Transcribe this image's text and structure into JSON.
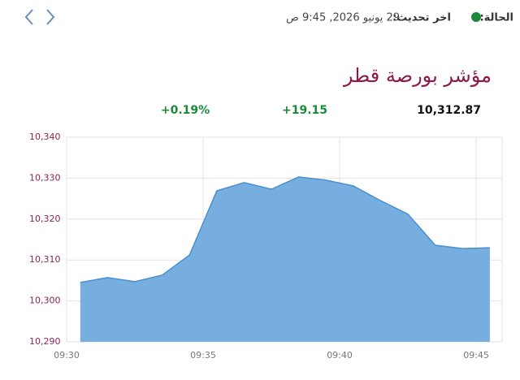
{
  "header": {
    "status_label": "الحالة:",
    "update_label": "اخر تحديث:",
    "update_time": "29 يونيو 2026, 9:45 ص"
  },
  "index": {
    "title": "مؤشر بورصة قطر",
    "last": "10,312.87",
    "change": "+19.15",
    "change_percent": "+0.19%"
  },
  "chart_data": {
    "type": "area",
    "x": [
      570.5,
      571.5,
      572.5,
      573.5,
      574.5,
      575.5,
      576.5,
      577.5,
      578.5,
      579.5,
      580.5,
      581.5,
      582.5,
      583.5,
      584.5,
      585.5
    ],
    "values": [
      10304.5,
      10305.7,
      10304.7,
      10306.3,
      10311.2,
      10326.9,
      10328.9,
      10327.3,
      10330.3,
      10329.5,
      10328.1,
      10324.5,
      10321.2,
      10313.6,
      10312.8,
      10313.0
    ],
    "color": "#77aee0",
    "line_color": "#4a8fd0",
    "xlim": [
      570,
      585.95
    ],
    "xticks": [
      {
        "value": 570,
        "label": "09:30"
      },
      {
        "value": 575,
        "label": "09:35"
      },
      {
        "value": 580,
        "label": "09:40"
      },
      {
        "value": 585,
        "label": "09:45"
      }
    ],
    "ylim": [
      10290,
      10340
    ],
    "yticks": [
      {
        "value": 10290,
        "label": "10,290"
      },
      {
        "value": 10300,
        "label": "10,300"
      },
      {
        "value": 10310,
        "label": "10,310"
      },
      {
        "value": 10320,
        "label": "10,320"
      },
      {
        "value": 10330,
        "label": "10,330"
      },
      {
        "value": 10340,
        "label": "10,340"
      }
    ],
    "grid": true
  }
}
